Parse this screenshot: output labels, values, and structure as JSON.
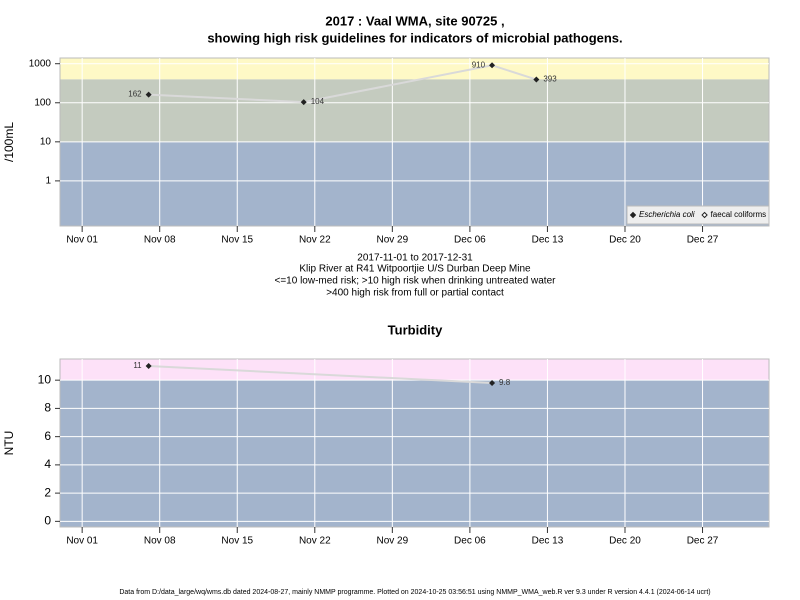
{
  "chart_data": [
    {
      "type": "line",
      "title": [
        "2017 : Vaal WMA, site 90725 ,",
        "showing high risk guidelines for indicators of microbial pathogens."
      ],
      "caption": [
        "2017-11-01 to 2017-12-31",
        "Klip River at R41 Witpoortjie U/S Durban Deep Mine",
        "<=10 low-med risk; >10 high risk when drinking untreated water",
        ">400 high risk from full or partial contact"
      ],
      "ylabel": "/100mL",
      "log_scale": true,
      "ylim": [
        0.07,
        1400
      ],
      "yticks": [
        1,
        10,
        100,
        1000
      ],
      "xlim": [
        "Oct 30",
        "Jan 02"
      ],
      "xticks": [
        "Nov 01",
        "Nov 08",
        "Nov 15",
        "Nov 22",
        "Nov 29",
        "Dec 06",
        "Dec 13",
        "Dec 20",
        "Dec 27"
      ],
      "x": [
        "Nov 07",
        "Nov 21",
        "Dec 08",
        "Dec 12"
      ],
      "series": [
        {
          "name": "Escherichia coli",
          "color": "#222222",
          "values": [
            162,
            104,
            910,
            393
          ]
        },
        {
          "name": "faecal coliforms",
          "color": "#222222",
          "values": [
            null,
            null,
            null,
            null
          ]
        }
      ],
      "thresholds": [
        10,
        400
      ],
      "band_colors": [
        "#a3b4cc",
        "#c4cbbf",
        "#fef9c6"
      ],
      "line_color": "#d9d9d9",
      "grid": true,
      "legend": "bottom-right"
    },
    {
      "type": "line",
      "title": [
        "Turbidity"
      ],
      "ylabel": "NTU",
      "log_scale": false,
      "ylim": [
        -0.4,
        11.5
      ],
      "yticks": [
        0,
        2,
        4,
        6,
        8,
        10
      ],
      "xlim": [
        "Oct 30",
        "Jan 02"
      ],
      "xticks": [
        "Nov 01",
        "Nov 08",
        "Nov 15",
        "Nov 22",
        "Nov 29",
        "Dec 06",
        "Dec 13",
        "Dec 20",
        "Dec 27"
      ],
      "x": [
        "Nov 07",
        "Dec 08"
      ],
      "series": [
        {
          "name": "Turbidity",
          "color": "#222222",
          "values": [
            11,
            9.8
          ]
        }
      ],
      "thresholds": [
        10
      ],
      "band_colors": [
        "#a3b4cc",
        "#fde1f8"
      ],
      "line_color": "#d9d9d9",
      "grid": true
    }
  ],
  "footer": "Data from D:/data_large/wq/wms.db dated 2024-08-27, mainly NMMP programme. Plotted on 2024-10-25 03:56:51 using NMMP_WMA_web.R ver 9.3 under R version 4.4.1 (2024-06-14 ucrt)"
}
